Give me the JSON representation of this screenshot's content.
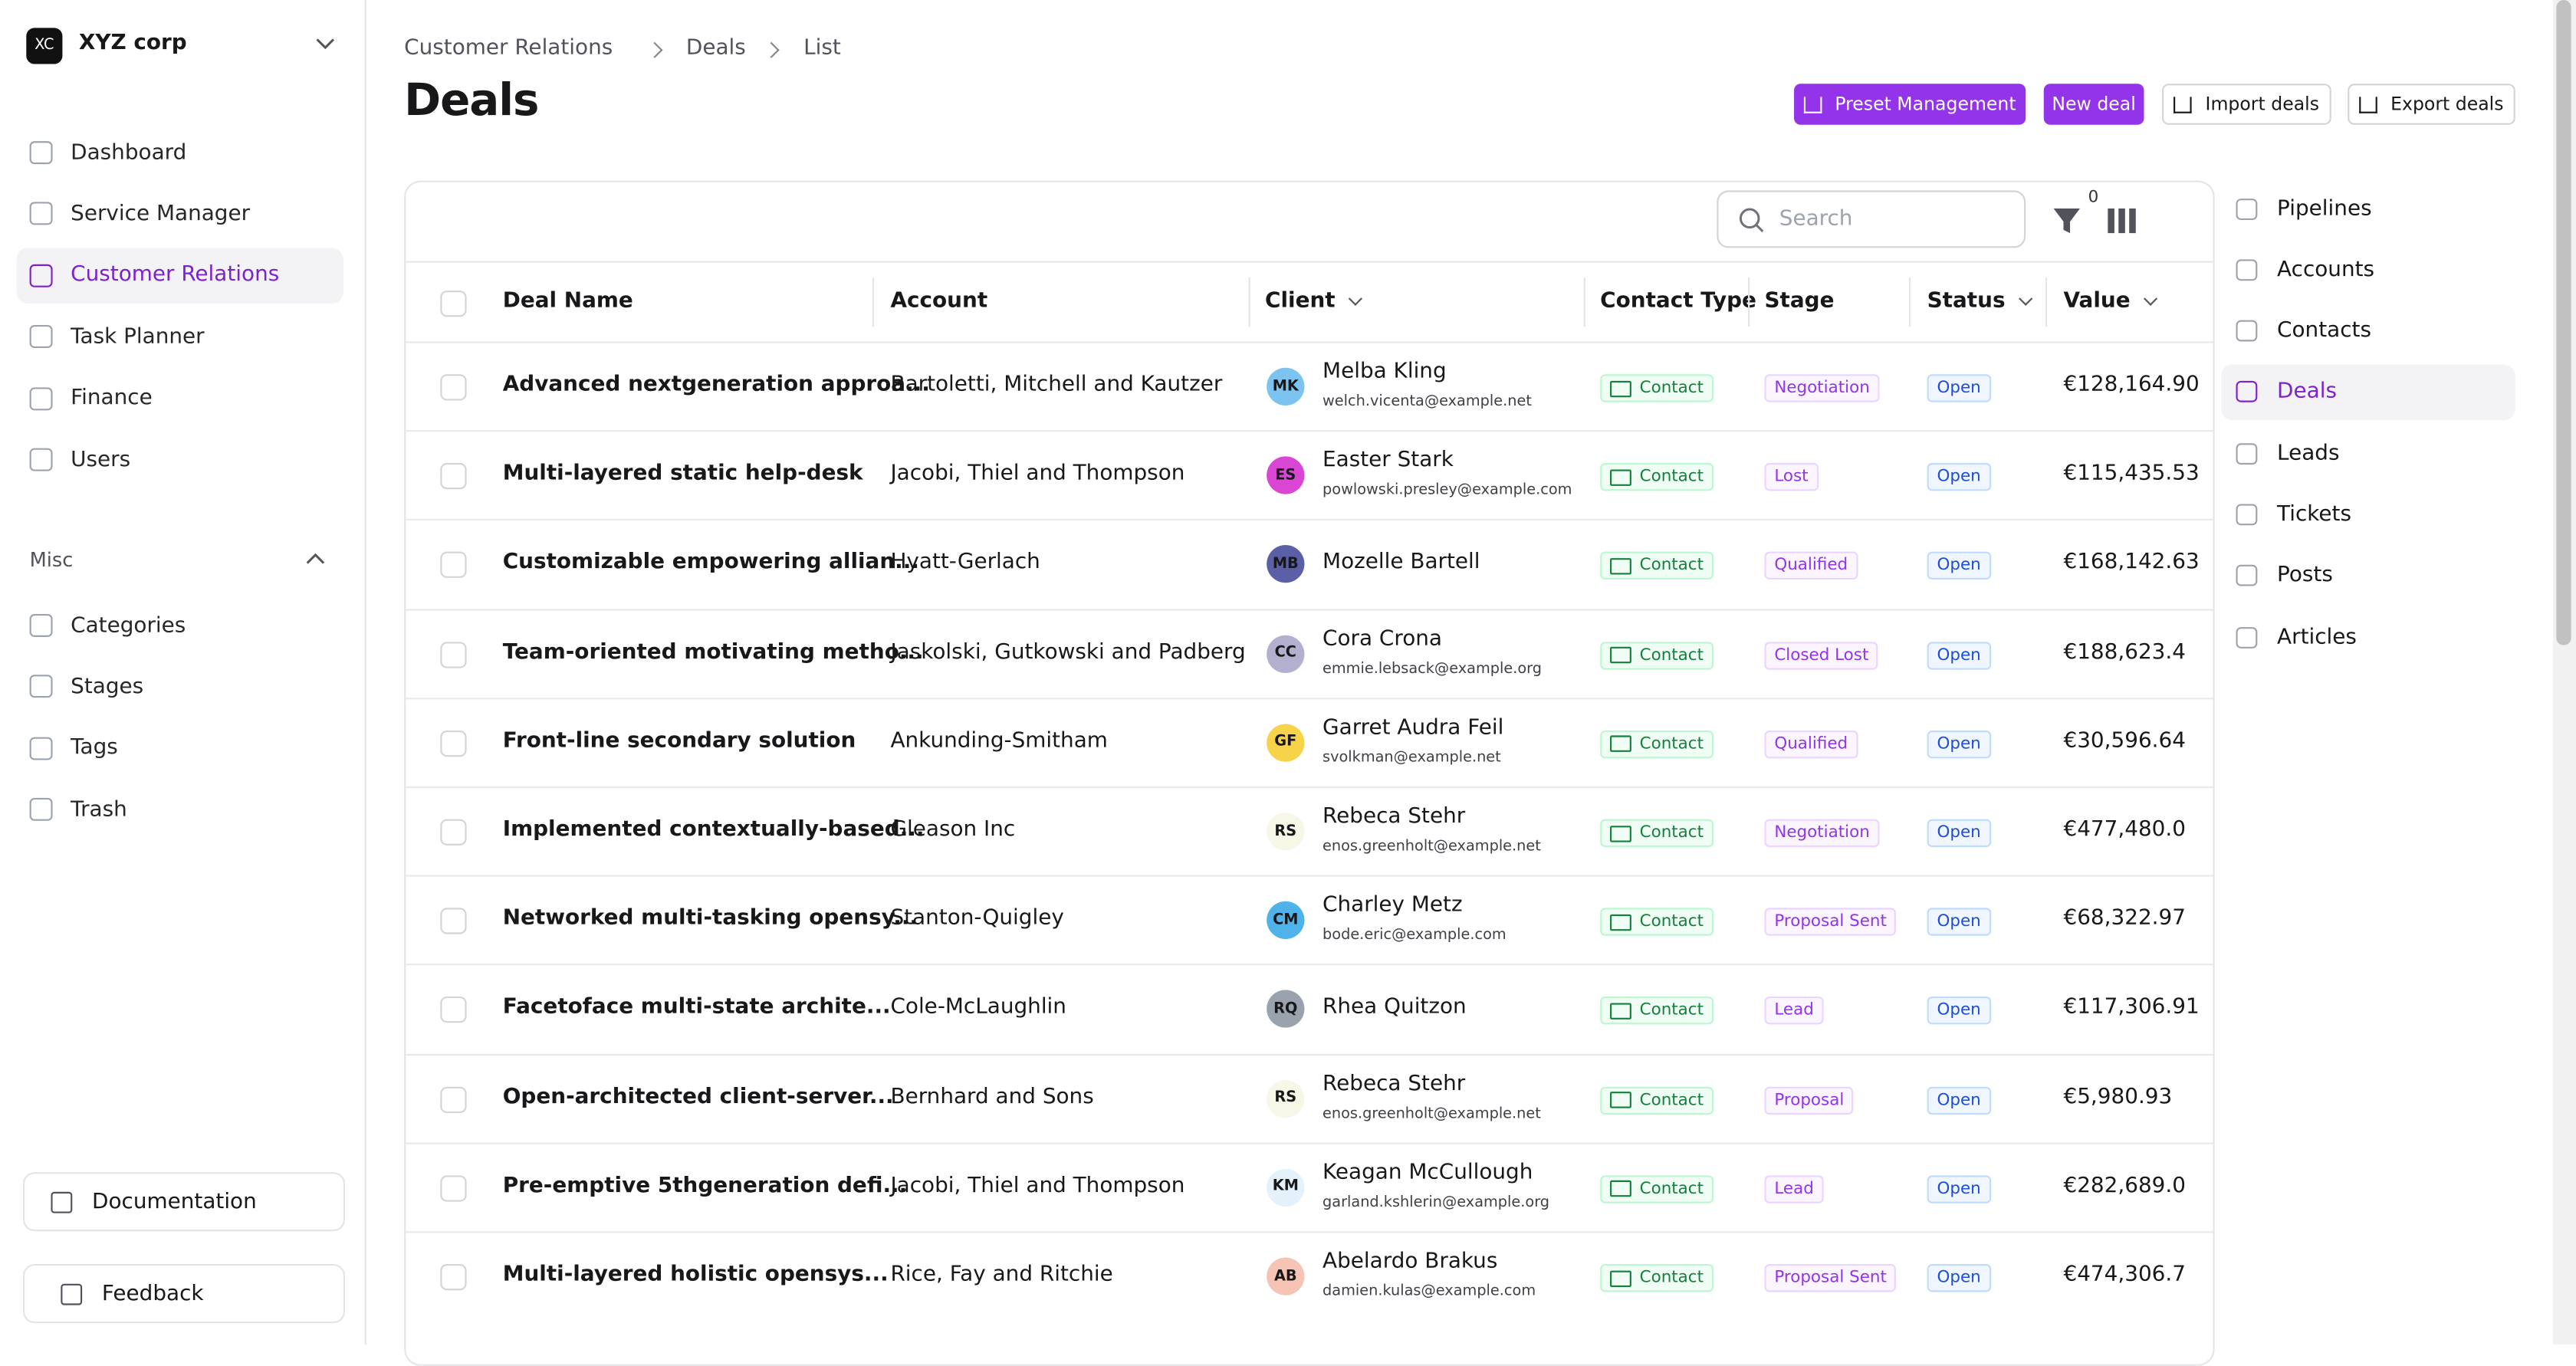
{
  "org": "XYZ corp",
  "org_badge": "XC",
  "nav": [
    "Dashboard",
    "Service Manager",
    "Customer Relations",
    "Task Planner",
    "Finance",
    "Users"
  ],
  "nav_active": 2,
  "misc_title": "Misc",
  "misc": [
    "Categories",
    "Stages",
    "Tags",
    "Trash"
  ],
  "footer_buttons": [
    "Documentation",
    "Feedback"
  ],
  "breadcrumb": [
    "Customer Relations",
    "Deals",
    "List"
  ],
  "title": "Deals",
  "actions": [
    "Preset Management",
    "New deal",
    "Import deals",
    "Export deals"
  ],
  "search_placeholder": "Search",
  "filter_count": "0",
  "columns": [
    "Deal Name",
    "Account",
    "Client",
    "Contact Type",
    "Stage",
    "Status",
    "Value"
  ],
  "rows": [
    {
      "name": "Advanced nextgeneration approa...",
      "account": "Bartoletti, Mitchell and Kautzer",
      "initials": "MK",
      "avatar_color": "#7cc3f0",
      "client": "Melba Kling",
      "email": "welch.vicenta@example.net",
      "contact": "Contact",
      "stage": "Negotiation",
      "status": "Open",
      "value": "€128,164.90"
    },
    {
      "name": "Multi-layered static help-desk",
      "account": "Jacobi, Thiel and Thompson",
      "initials": "ES",
      "avatar_color": "#d946d4",
      "client": "Easter Stark",
      "email": "powlowski.presley@example.com",
      "contact": "Contact",
      "stage": "Lost",
      "status": "Open",
      "value": "€115,435.53"
    },
    {
      "name": "Customizable empowering allian...",
      "account": "Hyatt-Gerlach",
      "initials": "MB",
      "avatar_color": "#5a5fa8",
      "client": "Mozelle Bartell",
      "contact": "Contact",
      "stage": "Qualified",
      "status": "Open",
      "value": "€168,142.63"
    },
    {
      "name": "Team-oriented motivating metho...",
      "account": "Jaskolski, Gutkowski and Padberg",
      "initials": "CC",
      "avatar_color": "#b3b0cf",
      "client": "Cora Crona",
      "email": "emmie.lebsack@example.org",
      "contact": "Contact",
      "stage": "Closed Lost",
      "status": "Open",
      "value": "€188,623.4"
    },
    {
      "name": "Front-line secondary solution",
      "account": "Ankunding-Smitham",
      "initials": "GF",
      "avatar_color": "#f7d34a",
      "client": "Garret Audra Feil",
      "email": "svolkman@example.net",
      "contact": "Contact",
      "stage": "Qualified",
      "status": "Open",
      "value": "€30,596.64"
    },
    {
      "name": "Implemented contextually-based...",
      "account": "Gleason Inc",
      "initials": "RS",
      "avatar_color": "#f7f7e8",
      "client": "Rebeca Stehr",
      "email": "enos.greenholt@example.net",
      "contact": "Contact",
      "stage": "Negotiation",
      "status": "Open",
      "value": "€477,480.0"
    },
    {
      "name": "Networked multi-tasking opensy...",
      "account": "Stanton-Quigley",
      "initials": "CM",
      "avatar_color": "#4fb3ea",
      "client": "Charley Metz",
      "email": "bode.eric@example.com",
      "contact": "Contact",
      "stage": "Proposal Sent",
      "status": "Open",
      "value": "€68,322.97"
    },
    {
      "name": "Facetoface multi-state archite...",
      "account": "Cole-McLaughlin",
      "initials": "RQ",
      "avatar_color": "#9aa3ad",
      "client": "Rhea Quitzon",
      "contact": "Contact",
      "stage": "Lead",
      "status": "Open",
      "value": "€117,306.91"
    },
    {
      "name": "Open-architected client-server...",
      "account": "Bernhard and Sons",
      "initials": "RS",
      "avatar_color": "#f7f7e8",
      "client": "Rebeca Stehr",
      "email": "enos.greenholt@example.net",
      "contact": "Contact",
      "stage": "Proposal",
      "status": "Open",
      "value": "€5,980.93"
    },
    {
      "name": "Pre-emptive 5thgeneration defi...",
      "account": "Jacobi, Thiel and Thompson",
      "initials": "KM",
      "avatar_color": "#e3f1fb",
      "client": "Keagan McCullough",
      "email": "garland.kshlerin@example.org",
      "contact": "Contact",
      "stage": "Lead",
      "status": "Open",
      "value": "€282,689.0"
    },
    {
      "name": "Multi-layered holistic opensys...",
      "account": "Rice, Fay and Ritchie",
      "initials": "AB",
      "avatar_color": "#f6c4b4",
      "client": "Abelardo Brakus",
      "email": "damien.kulas@example.com",
      "contact": "Contact",
      "stage": "Proposal Sent",
      "status": "Open",
      "value": "€474,306.7"
    }
  ],
  "side_links": [
    "Pipelines",
    "Accounts",
    "Contacts",
    "Deals",
    "Leads",
    "Tickets",
    "Posts",
    "Articles"
  ],
  "side_active": 3
}
